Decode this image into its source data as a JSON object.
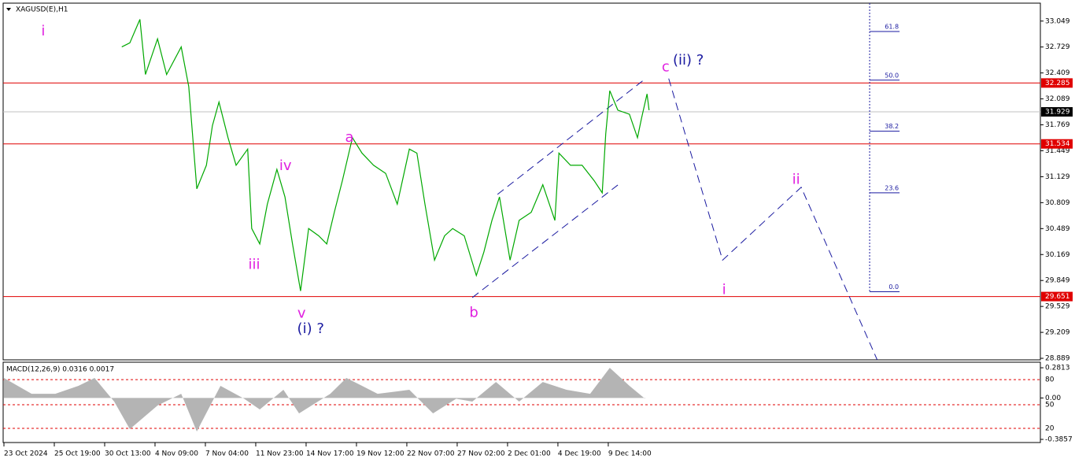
{
  "chart_data": [
    {
      "type": "line",
      "title": "XAGUSD(E),H1",
      "color": "#00a800",
      "xlim": [
        0,
        20.58
      ],
      "ylim": [
        28.87,
        33.27
      ],
      "xticks": [
        {
          "value": 0,
          "label": "23 Oct 2024"
        },
        {
          "value": 1,
          "label": "25 Oct 19:00"
        },
        {
          "value": 2,
          "label": "30 Oct 13:00"
        },
        {
          "value": 3,
          "label": "4 Nov 09:00"
        },
        {
          "value": 4,
          "label": "7 Nov 04:00"
        },
        {
          "value": 5,
          "label": "11 Nov 23:00"
        },
        {
          "value": 6,
          "label": "14 Nov 17:00"
        },
        {
          "value": 7,
          "label": "19 Nov 12:00"
        },
        {
          "value": 8,
          "label": "22 Nov 07:00"
        },
        {
          "value": 9,
          "label": "27 Nov 02:00"
        },
        {
          "value": 10,
          "label": "2 Dec 01:00"
        },
        {
          "value": 11,
          "label": "4 Dec 19:00"
        },
        {
          "value": 12,
          "label": "9 Dec 14:00"
        }
      ],
      "yticks": [
        33.049,
        32.729,
        32.409,
        32.089,
        31.769,
        31.449,
        31.129,
        30.809,
        30.489,
        30.169,
        29.849,
        29.529,
        29.209,
        28.889
      ],
      "x": [
        2.34,
        2.5,
        2.7,
        2.81,
        3.05,
        3.23,
        3.52,
        3.67,
        3.83,
        4.02,
        4.14,
        4.27,
        4.45,
        4.61,
        4.84,
        4.92,
        5.08,
        5.23,
        5.42,
        5.58,
        5.73,
        5.89,
        6.05,
        6.25,
        6.41,
        6.56,
        6.72,
        6.92,
        7.11,
        7.34,
        7.58,
        7.81,
        8.05,
        8.2,
        8.36,
        8.55,
        8.75,
        8.91,
        9.14,
        9.38,
        9.53,
        9.69,
        9.84,
        10.05,
        10.23,
        10.47,
        10.7,
        10.94,
        11.02,
        11.25,
        11.48,
        11.72,
        11.88,
        11.95,
        12.03,
        12.19,
        12.42,
        12.58,
        12.66,
        12.77,
        12.81
      ],
      "values": [
        32.73,
        32.78,
        33.07,
        32.39,
        32.83,
        32.39,
        32.73,
        32.24,
        30.98,
        31.27,
        31.76,
        32.05,
        31.61,
        31.27,
        31.47,
        30.49,
        30.3,
        30.79,
        31.22,
        30.88,
        30.3,
        29.72,
        30.49,
        30.4,
        30.3,
        30.69,
        31.08,
        31.61,
        31.42,
        31.27,
        31.17,
        30.79,
        31.47,
        31.42,
        30.79,
        30.1,
        30.4,
        30.49,
        30.4,
        29.91,
        30.2,
        30.59,
        30.88,
        30.1,
        30.59,
        30.69,
        31.03,
        30.59,
        31.42,
        31.27,
        31.27,
        31.08,
        30.93,
        31.66,
        32.19,
        31.95,
        31.9,
        31.61,
        31.85,
        32.15,
        31.95
      ],
      "levels": [
        32.285,
        31.534,
        29.651
      ],
      "level_color": "#e00000",
      "last_price": 31.929,
      "fib_x": 17.19,
      "fib_levels": [
        {
          "value": 32.92,
          "label": "61.8"
        },
        {
          "value": 32.32,
          "label": "50.0"
        },
        {
          "value": 31.69,
          "label": "38.2"
        },
        {
          "value": 30.93,
          "label": "23.6"
        },
        {
          "value": 29.71,
          "label": "0.0"
        }
      ],
      "lines": [
        {
          "color": "#1a1aa0",
          "x": [
            9.3,
            12.19
          ],
          "y": [
            29.638,
            31.027
          ]
        },
        {
          "color": "#1a1aa0",
          "x": [
            9.8,
            12.7
          ],
          "y": [
            30.911,
            32.32
          ]
        },
        {
          "color": "#1a1aa0",
          "x": [
            13.2,
            14.27,
            15.83,
            17.34
          ],
          "y": [
            32.34,
            30.1,
            30.999,
            28.87
          ]
        }
      ],
      "annotations": [
        {
          "text": "i",
          "x": 0.78,
          "y": 32.92,
          "color": "#e020e0"
        },
        {
          "text": "iii",
          "x": 4.97,
          "y": 30.04,
          "color": "#e020e0"
        },
        {
          "text": "iv",
          "x": 5.59,
          "y": 31.26,
          "color": "#e020e0"
        },
        {
          "text": "v",
          "x": 5.91,
          "y": 29.44,
          "color": "#e020e0"
        },
        {
          "text": "(i) ?",
          "x": 6.09,
          "y": 29.25,
          "color": "#1a1aa0"
        },
        {
          "text": "a",
          "x": 6.86,
          "y": 31.61,
          "color": "#e020e0"
        },
        {
          "text": "b",
          "x": 9.33,
          "y": 29.45,
          "color": "#e020e0"
        },
        {
          "text": "c",
          "x": 13.14,
          "y": 32.48,
          "color": "#e020e0"
        },
        {
          "text": "(ii) ?",
          "x": 13.59,
          "y": 32.56,
          "color": "#1a1aa0"
        },
        {
          "text": "ii",
          "x": 15.73,
          "y": 31.09,
          "color": "#e020e0"
        },
        {
          "text": "i",
          "x": 14.3,
          "y": 29.73,
          "color": "#e020e0"
        }
      ]
    },
    {
      "type": "area",
      "title": "MACD(12,26,9) 0.0316 0.0017",
      "color": "#b4b4b4",
      "xlim": [
        0,
        20.58
      ],
      "ylim": [
        -0.415,
        0.333
      ],
      "yticks": [
        0.2813,
        {
          "value": 0,
          "label": "0.00"
        },
        -0.3857
      ],
      "levels": [
        {
          "value": 0.171,
          "label": "80"
        },
        {
          "value": -0.063,
          "label": "50"
        },
        {
          "value": -0.283,
          "label": "20"
        }
      ],
      "level_color": "#e00000",
      "x": [
        0,
        0.55,
        1.02,
        1.48,
        1.8,
        2.19,
        2.5,
        3.05,
        3.52,
        3.83,
        4.3,
        4.77,
        5.08,
        5.55,
        5.86,
        6.48,
        6.8,
        7.11,
        7.42,
        8.05,
        8.52,
        8.98,
        9.3,
        9.77,
        10.23,
        10.7,
        11.17,
        11.64,
        12.03,
        12.42,
        12.73
      ],
      "values": [
        0.186,
        0.039,
        0.039,
        0.113,
        0.186,
        -0.034,
        -0.29,
        -0.07,
        0.039,
        -0.312,
        0.113,
        -0.007,
        -0.107,
        0.076,
        -0.144,
        0.039,
        0.186,
        0.113,
        0.039,
        0.076,
        -0.144,
        -0.007,
        -0.034,
        0.149,
        -0.034,
        0.149,
        0.076,
        0.039,
        0.281,
        0.113,
        -0.007
      ]
    }
  ]
}
